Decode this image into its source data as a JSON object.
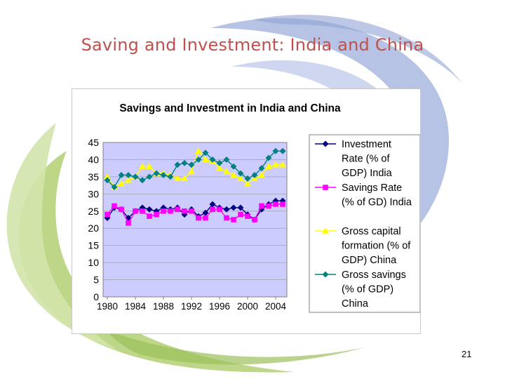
{
  "slide": {
    "title": "Saving and Investment: India and China",
    "page_number": "21"
  },
  "colors": {
    "title": "#c0504d",
    "plot_bg": "#ccccff",
    "swirl_blue": "#a9b8df",
    "swirl_green": "#b6d27a"
  },
  "chart_data": {
    "type": "line",
    "title": "Savings and Investment in India and China",
    "xlabel": "",
    "ylabel": "",
    "ylim": [
      0,
      45
    ],
    "yticks": [
      "45",
      "40",
      "35",
      "30",
      "25",
      "20",
      "15",
      "10",
      "5",
      "0"
    ],
    "xtick_labels": [
      "1980",
      "1984",
      "1988",
      "1992",
      "1996",
      "2000",
      "2004"
    ],
    "grid": true,
    "legend_position": "right",
    "x": [
      1980,
      1981,
      1982,
      1983,
      1984,
      1985,
      1986,
      1987,
      1988,
      1989,
      1990,
      1991,
      1992,
      1993,
      1994,
      1995,
      1996,
      1997,
      1998,
      1999,
      2000,
      2001,
      2002,
      2003,
      2004,
      2005
    ],
    "series": [
      {
        "name": "Investment Rate (% of GDP) India",
        "legend_lines": [
          "Investment",
          "Rate (% of",
          "GDP) India"
        ],
        "color": "#000080",
        "marker": "diamond",
        "values": [
          23,
          26,
          25.5,
          23,
          25,
          26,
          25.5,
          25,
          26,
          25.5,
          26,
          24,
          25.5,
          23.5,
          24.5,
          27,
          26,
          25.5,
          26,
          26,
          24,
          22.5,
          25.5,
          27,
          28,
          28
        ]
      },
      {
        "name": "Savings Rate (% of GD) India",
        "legend_lines": [
          "Savings Rate",
          "(% of GD) India"
        ],
        "color": "#ff00ff",
        "marker": "square",
        "values": [
          24,
          26.5,
          25.5,
          21.5,
          25,
          25,
          23.5,
          24,
          25,
          25,
          25.5,
          25,
          25,
          23,
          23,
          25.5,
          25.5,
          23,
          22.5,
          24,
          23.5,
          22.5,
          26.5,
          26.5,
          27,
          27
        ]
      },
      {
        "name": "Gross capital formation (% of GDP) China",
        "legend_lines": [
          "Gross capital",
          "formation (% of",
          "GDP) China"
        ],
        "color": "#ffff00",
        "marker": "triangle",
        "values": [
          35,
          32,
          33,
          34,
          35,
          38,
          38,
          36,
          36,
          35.5,
          34.5,
          34.5,
          36.5,
          42.5,
          40,
          39.5,
          37.5,
          36.5,
          35.5,
          34.5,
          33,
          34.5,
          35.5,
          38,
          38.5,
          38.5
        ]
      },
      {
        "name": "Gross savings (% of GDP) China",
        "legend_lines": [
          "Gross savings",
          "(% of GDP)",
          "China"
        ],
        "color": "#008080",
        "marker": "diamond",
        "values": [
          34,
          32,
          35.5,
          35.5,
          35,
          34,
          35,
          36,
          35.5,
          35,
          38.5,
          39,
          38.5,
          40,
          42,
          40,
          39,
          40,
          38,
          36,
          34.5,
          35.5,
          37.5,
          40.5,
          42.5,
          42.5
        ]
      }
    ]
  }
}
